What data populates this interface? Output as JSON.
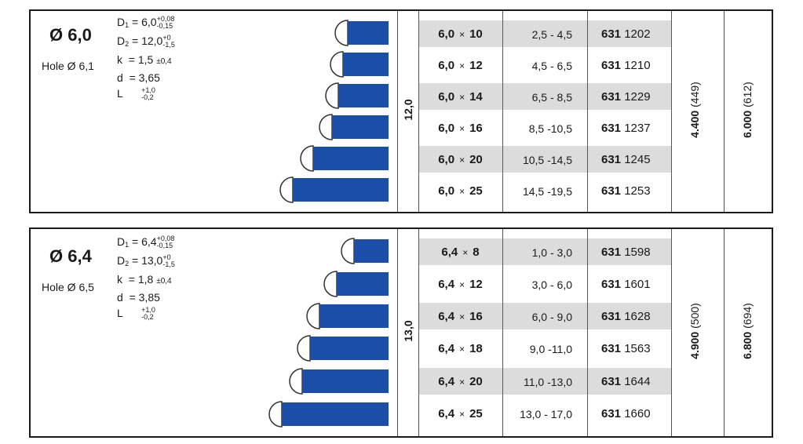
{
  "groups": [
    {
      "diameter": "Ø 6,0",
      "hole": "Hole Ø 6,1",
      "specs": {
        "d1_label": "D",
        "d1_sub": "1",
        "d1_value": "= 6,0",
        "d1_tol_top": "+0,08",
        "d1_tol_bot": "-0,15",
        "d2_label": "D",
        "d2_sub": "2",
        "d2_value": "= 12,0",
        "d2_tol_top": "+0",
        "d2_tol_bot": "-1,5",
        "k_label": "k",
        "k_value": "= 1,5",
        "k_tol": "±0,4",
        "d_label": "d",
        "d_value": "= 3,65",
        "l_label": "L",
        "l_tol_top": "+1,0",
        "l_tol_bot": "-0,2"
      },
      "head_diameter": "12,0",
      "rows": [
        {
          "dia": "6,0",
          "len": "10",
          "grip": "2,5 - 4,5",
          "code_a": "631",
          "code_b": "1202"
        },
        {
          "dia": "6,0",
          "len": "12",
          "grip": "4,5 - 6,5",
          "code_a": "631",
          "code_b": "1210"
        },
        {
          "dia": "6,0",
          "len": "14",
          "grip": "6,5 - 8,5",
          "code_a": "631",
          "code_b": "1229"
        },
        {
          "dia": "6,0",
          "len": "16",
          "grip": "8,5 -10,5",
          "code_a": "631",
          "code_b": "1237"
        },
        {
          "dia": "6,0",
          "len": "20",
          "grip": "10,5 -14,5",
          "code_a": "631",
          "code_b": "1245"
        },
        {
          "dia": "6,0",
          "len": "25",
          "grip": "14,5 -19,5",
          "code_a": "631",
          "code_b": "1253"
        }
      ],
      "shear": "4.400",
      "shear_lbs": "(449)",
      "tensile": "6.000",
      "tensile_lbs": "(612)"
    },
    {
      "diameter": "Ø 6,4",
      "hole": "Hole Ø 6,5",
      "specs": {
        "d1_label": "D",
        "d1_sub": "1",
        "d1_value": "= 6,4",
        "d1_tol_top": "+0,08",
        "d1_tol_bot": "-0,15",
        "d2_label": "D",
        "d2_sub": "2",
        "d2_value": "= 13,0",
        "d2_tol_top": "+0",
        "d2_tol_bot": "-1,5",
        "k_label": "k",
        "k_value": "= 1,8",
        "k_tol": "±0,4",
        "d_label": "d",
        "d_value": "= 3,85",
        "l_label": "L",
        "l_tol_top": "+1,0",
        "l_tol_bot": "-0,2"
      },
      "head_diameter": "13,0",
      "rows": [
        {
          "dia": "6,4",
          "len": "8",
          "grip": "1,0 - 3,0",
          "code_a": "631",
          "code_b": "1598"
        },
        {
          "dia": "6,4",
          "len": "12",
          "grip": "3,0 - 6,0",
          "code_a": "631",
          "code_b": "1601"
        },
        {
          "dia": "6,4",
          "len": "16",
          "grip": "6,0 - 9,0",
          "code_a": "631",
          "code_b": "1628"
        },
        {
          "dia": "6,4",
          "len": "18",
          "grip": "9,0 -11,0",
          "code_a": "631",
          "code_b": "1563"
        },
        {
          "dia": "6,4",
          "len": "20",
          "grip": "11,0 -13,0",
          "code_a": "631",
          "code_b": "1644"
        },
        {
          "dia": "6,4",
          "len": "25",
          "grip": "13,0 - 17,0",
          "code_a": "631",
          "code_b": "1660"
        }
      ],
      "shear": "4.900",
      "shear_lbs": "(500)",
      "tensile": "6.800",
      "tensile_lbs": "(694)"
    }
  ],
  "colors": {
    "rivet_body": "#1a4ea8",
    "rivet_head": "#ffffff",
    "shade": "#dcdcdc"
  }
}
